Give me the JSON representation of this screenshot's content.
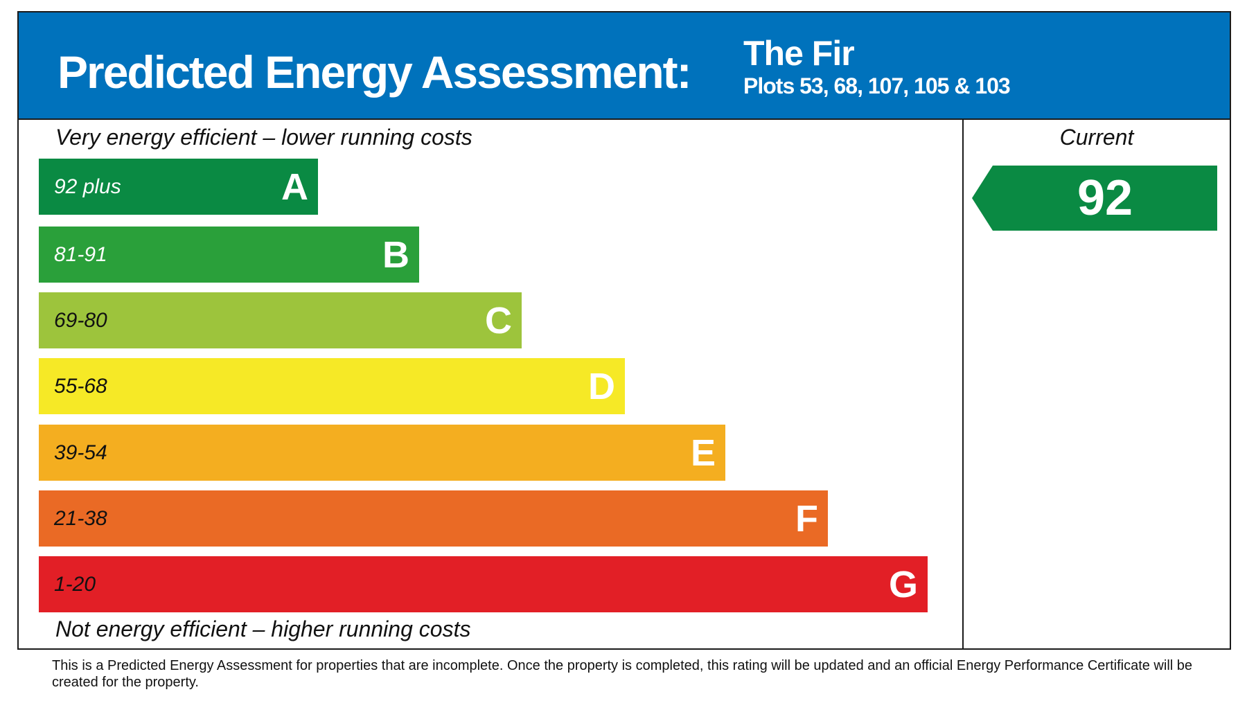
{
  "header": {
    "title": "Predicted Energy Assessment:",
    "property_name": "The Fir",
    "plots": "Plots 53, 68, 107, 105 & 103",
    "background_color": "#0072bc"
  },
  "scale": {
    "top_caption": "Very energy efficient – lower running costs",
    "bottom_caption": "Not energy efficient – higher running costs",
    "bands": [
      {
        "range": "92 plus",
        "letter": "A",
        "color": "#0a8a43",
        "range_text_color": "#ffffff"
      },
      {
        "range": "81-91",
        "letter": "B",
        "color": "#2aa03a",
        "range_text_color": "#ffffff"
      },
      {
        "range": "69-80",
        "letter": "C",
        "color": "#9dc43c",
        "range_text_color": "#111111"
      },
      {
        "range": "55-68",
        "letter": "D",
        "color": "#f6e926",
        "range_text_color": "#111111"
      },
      {
        "range": "39-54",
        "letter": "E",
        "color": "#f4ae20",
        "range_text_color": "#111111"
      },
      {
        "range": "21-38",
        "letter": "F",
        "color": "#ea6a25",
        "range_text_color": "#111111"
      },
      {
        "range": "1-20",
        "letter": "G",
        "color": "#e21f26",
        "range_text_color": "#111111"
      }
    ]
  },
  "current": {
    "label": "Current",
    "value": "92",
    "band": "A",
    "color": "#0a8a43"
  },
  "footer": {
    "text": "This is a Predicted Energy Assessment for properties that are incomplete. Once the property is completed, this rating will be updated and an official Energy Performance Certificate will be created for the property."
  }
}
